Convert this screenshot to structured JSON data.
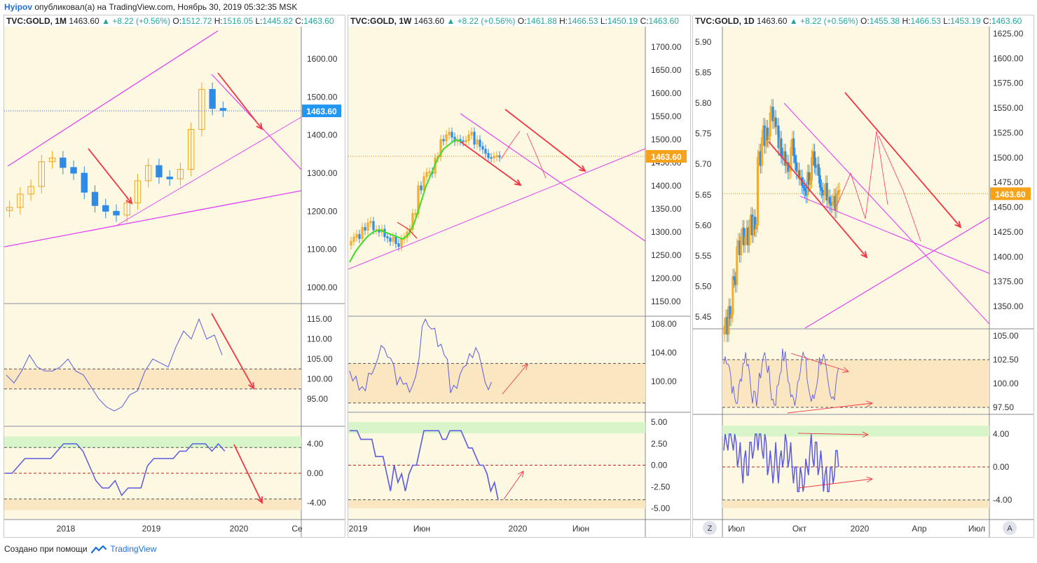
{
  "header": {
    "author": "Hyipov",
    "text": "опубликовал(а) на TradingView.com, Ноябрь 30, 2019 05:32:35 MSK"
  },
  "footer": {
    "prefix": "Создано при помощи",
    "brand": "TradingView"
  },
  "colors": {
    "bg": "#fdf8e1",
    "grid": "#efe6c0",
    "up": "#f0a622",
    "down": "#2f8ce6",
    "trend": "#e040fb",
    "arrow": "#f23645",
    "osc": "#5b5be0",
    "band": "#fbe6c2",
    "greenband": "#d7f5c8",
    "ema": "#3bdc2a",
    "price_badge": "#2196f3",
    "price_badge2": "#f7a21b"
  },
  "panels": [
    {
      "legend": {
        "symbol": "TVC:GOLD, 1M",
        "price": "1463.60",
        "change": "▲ +8.22 (+0.56%)",
        "o": "1512.72",
        "h": "1516.05",
        "l": "1445.82",
        "c": "1463.60"
      },
      "price_axis": [
        "1600.00",
        "1500.00",
        "1400.00",
        "1300.00",
        "1200.00",
        "1100.00",
        "1000.00"
      ],
      "price_badge": "1463.60",
      "osc1_axis": [
        "115.00",
        "110.00",
        "105.00",
        "100.00",
        "95.00"
      ],
      "osc2_axis": [
        "4.00",
        "0.00",
        "-4.00"
      ],
      "time_axis": [
        "2018",
        "2019",
        "2020",
        "Ce"
      ]
    },
    {
      "legend": {
        "symbol": "TVC:GOLD, 1W",
        "price": "1463.60",
        "change": "▲ +8.22 (+0.56%)",
        "o": "1461.88",
        "h": "1466.53",
        "l": "1450.19",
        "c": "1463.60"
      },
      "price_axis": [
        "1700.00",
        "1650.00",
        "1600.00",
        "1550.00",
        "1500.00",
        "1450.00",
        "1400.00",
        "1350.00",
        "1300.00",
        "1250.00",
        "1200.00",
        "1150.00"
      ],
      "price_badge": "1463.60",
      "osc1_axis": [
        "108.00",
        "104.00",
        "100.00"
      ],
      "osc2_axis": [
        "5.00",
        "2.50",
        "0.00",
        "-2.50",
        "-5.00"
      ],
      "time_axis": [
        "2019",
        "Июн",
        "2020",
        "Июн"
      ]
    },
    {
      "legend": {
        "symbol": "TVC:GOLD, 1D",
        "price": "1463.60",
        "change": "▲ +8.22 (+0.56%)",
        "o": "1455.38",
        "h": "1466.53",
        "l": "1453.19",
        "c": "1463.60"
      },
      "left_axis": [
        "5.90",
        "5.85",
        "5.80",
        "5.75",
        "5.70",
        "5.65",
        "5.60",
        "5.55",
        "5.50",
        "5.45"
      ],
      "price_axis": [
        "1625.00",
        "1600.00",
        "1575.00",
        "1550.00",
        "1525.00",
        "1500.00",
        "1475.00",
        "1450.00",
        "1425.00",
        "1400.00",
        "1375.00",
        "1350.00"
      ],
      "price_badge": "1463.60",
      "osc1_axis": [
        "105.00",
        "102.50",
        "100.00",
        "97.50"
      ],
      "osc2_axis": [
        "4.00",
        "0.00",
        "-4.00"
      ],
      "time_axis": [
        "Июл",
        "Окт",
        "2020",
        "Апр",
        "Июл"
      ],
      "z_button": "Z",
      "a_button": "A"
    }
  ],
  "chart_data": [
    {
      "type": "candlestick",
      "title": "TVC:GOLD, 1M",
      "ylim": [
        950,
        1680
      ],
      "series": [
        {
          "name": "TVC:GOLD",
          "ohlc_note": "monthly bars 2017-2019",
          "close_sample": [
            1210,
            1245,
            1265,
            1330,
            1340,
            1315,
            1300,
            1250,
            1215,
            1200,
            1190,
            1222,
            1280,
            1320,
            1290,
            1285,
            1310,
            1415,
            1520,
            1470,
            1465
          ]
        }
      ]
    },
    {
      "type": "candlestick",
      "title": "TVC:GOLD, 1W",
      "ylim": [
        1120,
        1730
      ],
      "series": [
        {
          "name": "TVC:GOLD",
          "close_sample": [
            1280,
            1300,
            1320,
            1310,
            1295,
            1285,
            1300,
            1340,
            1420,
            1500,
            1520,
            1505,
            1490,
            1480,
            1460
          ]
        }
      ]
    },
    {
      "type": "candlestick",
      "title": "TVC:GOLD, 1D",
      "ylim": [
        1325,
        1630
      ],
      "series": [
        {
          "name": "TVC:GOLD",
          "close_sample": [
            1330,
            1380,
            1410,
            1430,
            1500,
            1530,
            1545,
            1510,
            1495,
            1505,
            1480,
            1470,
            1495,
            1485,
            1465,
            1455,
            1463
          ]
        }
      ]
    }
  ]
}
